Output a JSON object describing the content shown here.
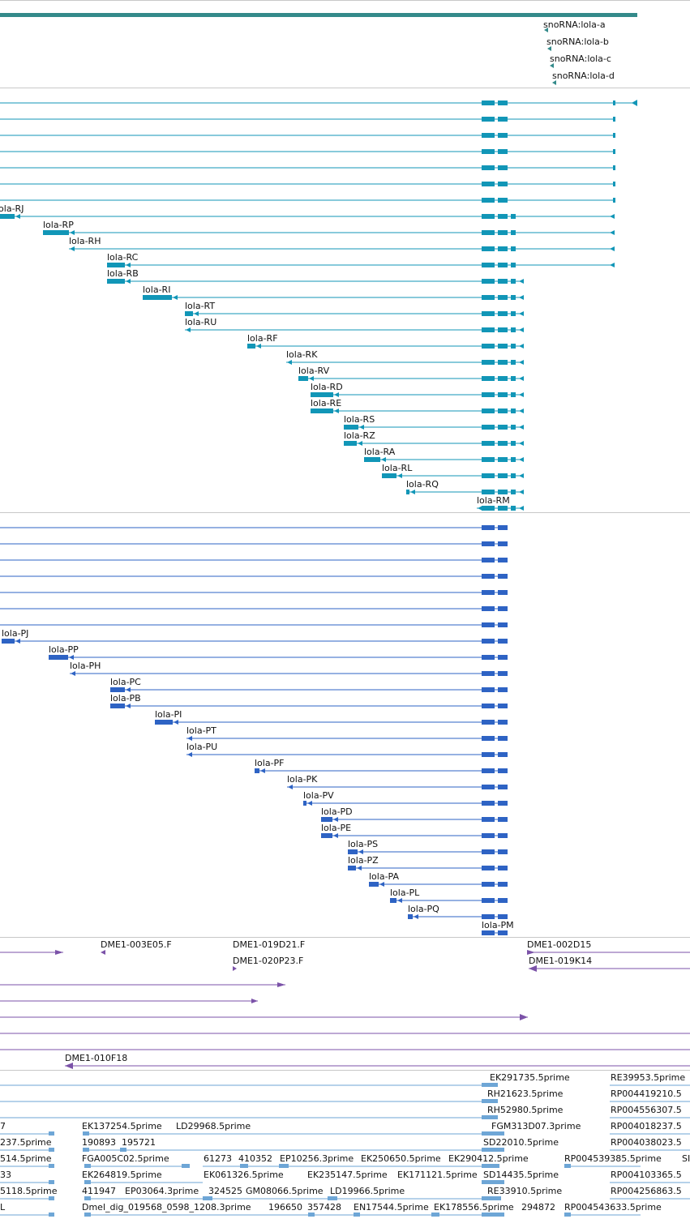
{
  "colors": {
    "gene_bar": "#338a8a",
    "track_lola_r": "#1196b7",
    "track_lola_p": "#2e63c4",
    "track_clones": "#7b52a8",
    "track_ests": "#6ea6d6",
    "divider": "#c8c8c8"
  },
  "tracks": {
    "snorna": {
      "labels": [
        "snoRNA:lola-a",
        "snoRNA:lola-b",
        "snoRNA:lola-c",
        "snoRNA:lola-d"
      ]
    },
    "lola_r": {
      "labels": [
        "lola-RJ",
        "lola-RP",
        "lola-RH",
        "lola-RC",
        "lola-RB",
        "lola-RI",
        "lola-RT",
        "lola-RU",
        "lola-RF",
        "lola-RK",
        "lola-RV",
        "lola-RD",
        "lola-RE",
        "lola-RS",
        "lola-RZ",
        "lola-RA",
        "lola-RL",
        "lola-RQ",
        "lola-RM"
      ]
    },
    "lola_p": {
      "labels": [
        "lola-PJ",
        "lola-PP",
        "lola-PH",
        "lola-PC",
        "lola-PB",
        "lola-PI",
        "lola-PT",
        "lola-PU",
        "lola-PF",
        "lola-PK",
        "lola-PV",
        "lola-PD",
        "lola-PE",
        "lola-PS",
        "lola-PZ",
        "lola-PA",
        "lola-PL",
        "lola-PQ",
        "lola-PM"
      ]
    },
    "clones": {
      "labels": [
        "DME1-003E05.F",
        "DME1-019D21.F",
        "DME1-020P23.F",
        "DME1-002D15",
        "DME1-019K14",
        "DME1-010F18"
      ]
    },
    "ests": {
      "labels": [
        "EK291735.5prime",
        "RE39953.5prime",
        "RH21623.5prime",
        "RP004419210.5",
        "RH52980.5prime",
        "RP004556307.5",
        "7",
        "EK137254.5prime",
        "LD29968.5prime",
        "FGM313D07.3prime",
        "RP004018237.5",
        "237.5prime",
        "190893",
        "195721",
        "SD22010.5prime",
        "RP004038023.5",
        "514.5prime",
        "FGA005C02.5prime",
        "61273",
        "410352",
        "EP10256.3prime",
        "EK250650.5prime",
        "EK290412.5prime",
        "RP004539385.5prime",
        "SI",
        "33",
        "EK264819.5prime",
        "EK061326.5prime",
        "EK235147.5prime",
        "EK171121.5prime",
        "SD14435.5prime",
        "RP004103365.5",
        "5118.5prime",
        "411947",
        "EP03064.3prime",
        "324525",
        "GM08066.5prime",
        "LD19966.5prime",
        "RE33910.5prime",
        "RP004256863.5",
        "L",
        "Dmel_dig_019568_0598_1208.3prime",
        "196650",
        "357428",
        "EN17544.5prime",
        "EK178556.5prime",
        "294872",
        "RP004543633.5prime"
      ]
    }
  }
}
